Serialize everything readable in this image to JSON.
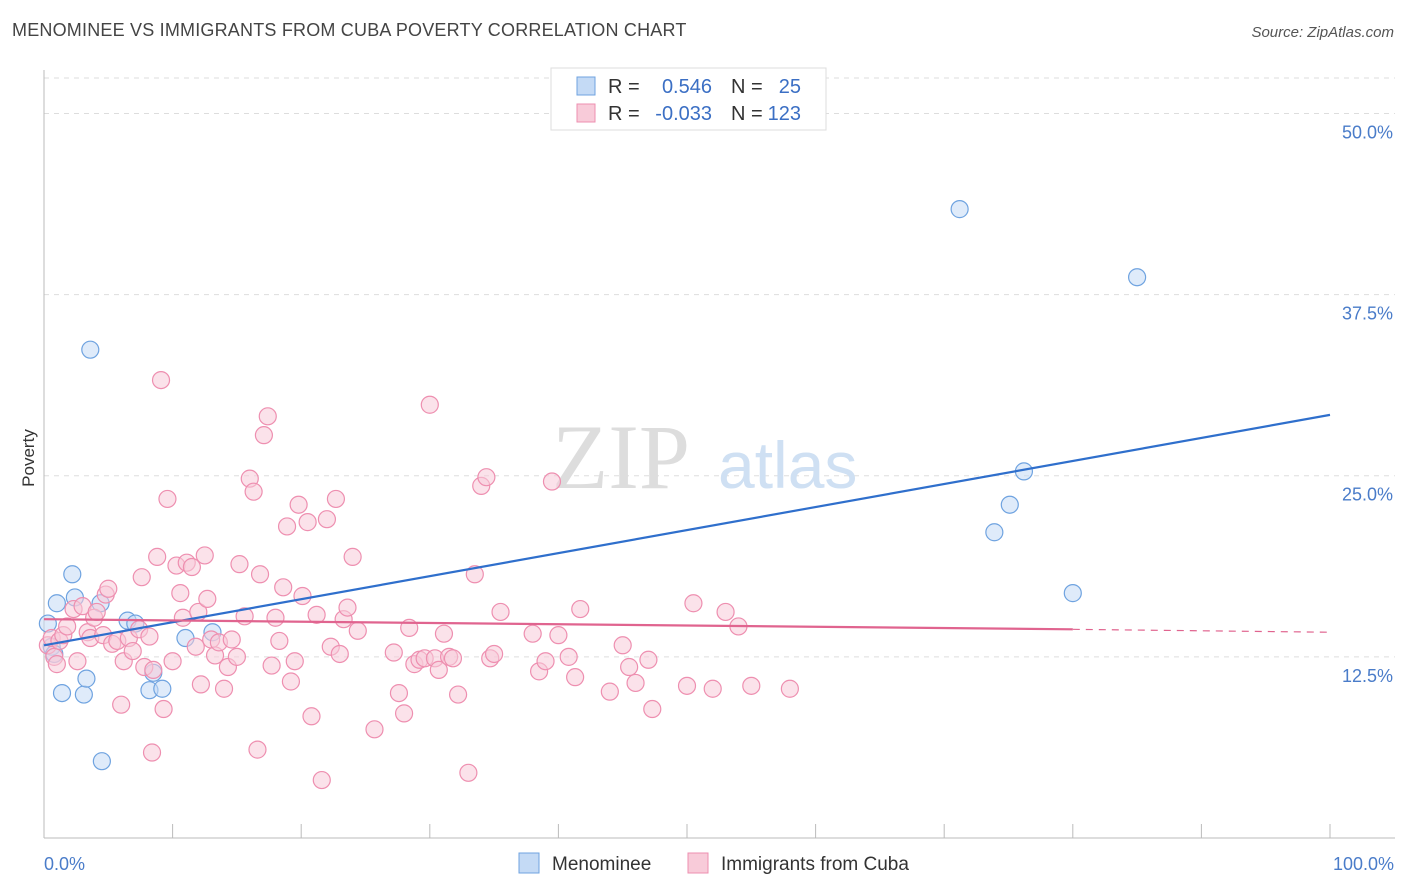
{
  "header": {
    "title": "MENOMINEE VS IMMIGRANTS FROM CUBA POVERTY CORRELATION CHART",
    "source": "Source: ZipAtlas.com"
  },
  "watermark": {
    "zip": "ZIP",
    "atlas": "atlas"
  },
  "chart_data": {
    "type": "scatter",
    "title": "MENOMINEE VS IMMIGRANTS FROM CUBA POVERTY CORRELATION CHART",
    "ylabel": "Poverty",
    "xlabel": "",
    "xlim": [
      0,
      100
    ],
    "ylim": [
      0,
      53
    ],
    "x_tick_labels": {
      "min": "0.0%",
      "max": "100.0%"
    },
    "y_ticks": [
      {
        "value": 12.5,
        "label": "12.5%"
      },
      {
        "value": 25.0,
        "label": "25.0%"
      },
      {
        "value": 37.5,
        "label": "37.5%"
      },
      {
        "value": 50.0,
        "label": "50.0%"
      }
    ],
    "grid": true,
    "legend_position": "top-center",
    "legend": [
      {
        "r_label": "R =",
        "r_value": "0.546",
        "n_label": "N =",
        "n_value": "25"
      },
      {
        "r_label": "R =",
        "r_value": "-0.033",
        "n_label": "N =",
        "n_value": "123"
      }
    ],
    "series": [
      {
        "name": "Menominee",
        "color": "#6fa3e0",
        "fill": "#c4daf5",
        "line_color": "#2f6fcc",
        "trend": {
          "x0": 0,
          "y0": 13.3,
          "x1": 100,
          "y1": 29.2
        },
        "points": [
          [
            0.3,
            14.8
          ],
          [
            0.6,
            13.2
          ],
          [
            0.8,
            12.7
          ],
          [
            1.0,
            16.2
          ],
          [
            1.4,
            10.0
          ],
          [
            2.2,
            18.2
          ],
          [
            2.4,
            16.6
          ],
          [
            3.1,
            9.9
          ],
          [
            3.3,
            11.0
          ],
          [
            3.6,
            33.7
          ],
          [
            4.5,
            5.3
          ],
          [
            4.4,
            16.2
          ],
          [
            6.5,
            15.0
          ],
          [
            7.1,
            14.8
          ],
          [
            8.2,
            10.2
          ],
          [
            8.5,
            11.4
          ],
          [
            9.2,
            10.3
          ],
          [
            11.0,
            13.8
          ],
          [
            13.1,
            14.2
          ],
          [
            71.2,
            43.4
          ],
          [
            73.9,
            21.1
          ],
          [
            75.1,
            23.0
          ],
          [
            76.2,
            25.3
          ],
          [
            80.0,
            16.9
          ],
          [
            85.0,
            38.7
          ]
        ]
      },
      {
        "name": "Immigrants from Cuba",
        "color": "#ee8fb0",
        "fill": "#f8cbd9",
        "line_color": "#e0648f",
        "trend": {
          "x0": 0,
          "y0": 15.1,
          "x1": 80,
          "y1": 14.4
        },
        "trend_extension": {
          "x0": 80,
          "y0": 14.4,
          "x1": 100,
          "y1": 14.2
        },
        "points": [
          [
            0.3,
            13.3
          ],
          [
            0.6,
            13.8
          ],
          [
            0.8,
            12.5
          ],
          [
            1.0,
            12.0
          ],
          [
            1.2,
            13.6
          ],
          [
            1.5,
            14.0
          ],
          [
            1.8,
            14.6
          ],
          [
            2.3,
            15.8
          ],
          [
            2.6,
            12.2
          ],
          [
            3.0,
            16.0
          ],
          [
            3.4,
            14.2
          ],
          [
            3.6,
            13.8
          ],
          [
            3.9,
            15.2
          ],
          [
            4.1,
            15.6
          ],
          [
            4.6,
            14.0
          ],
          [
            4.8,
            16.8
          ],
          [
            5.0,
            17.2
          ],
          [
            5.3,
            13.4
          ],
          [
            5.7,
            13.6
          ],
          [
            6.0,
            9.2
          ],
          [
            6.2,
            12.2
          ],
          [
            6.6,
            13.8
          ],
          [
            6.9,
            12.9
          ],
          [
            7.4,
            14.4
          ],
          [
            7.6,
            18.0
          ],
          [
            7.8,
            11.8
          ],
          [
            8.2,
            13.9
          ],
          [
            8.5,
            11.6
          ],
          [
            8.4,
            5.9
          ],
          [
            8.8,
            19.4
          ],
          [
            9.1,
            31.6
          ],
          [
            9.3,
            8.9
          ],
          [
            9.6,
            23.4
          ],
          [
            10.0,
            12.2
          ],
          [
            10.3,
            18.8
          ],
          [
            10.6,
            16.9
          ],
          [
            10.8,
            15.2
          ],
          [
            11.1,
            19.0
          ],
          [
            11.5,
            18.7
          ],
          [
            11.8,
            13.2
          ],
          [
            12.0,
            15.6
          ],
          [
            12.2,
            10.6
          ],
          [
            12.5,
            19.5
          ],
          [
            12.7,
            16.5
          ],
          [
            13.0,
            13.7
          ],
          [
            13.3,
            12.6
          ],
          [
            13.6,
            13.5
          ],
          [
            14.0,
            10.3
          ],
          [
            14.3,
            11.8
          ],
          [
            14.6,
            13.7
          ],
          [
            15.0,
            12.5
          ],
          [
            15.2,
            18.9
          ],
          [
            15.6,
            15.3
          ],
          [
            16.0,
            24.8
          ],
          [
            16.3,
            23.9
          ],
          [
            16.6,
            6.1
          ],
          [
            16.8,
            18.2
          ],
          [
            17.1,
            27.8
          ],
          [
            17.4,
            29.1
          ],
          [
            17.7,
            11.9
          ],
          [
            18.0,
            15.2
          ],
          [
            18.3,
            13.6
          ],
          [
            18.6,
            17.3
          ],
          [
            18.9,
            21.5
          ],
          [
            19.2,
            10.8
          ],
          [
            19.5,
            12.2
          ],
          [
            19.8,
            23.0
          ],
          [
            20.1,
            16.7
          ],
          [
            20.5,
            21.8
          ],
          [
            20.8,
            8.4
          ],
          [
            21.2,
            15.4
          ],
          [
            21.6,
            4.0
          ],
          [
            22.0,
            22.0
          ],
          [
            22.3,
            13.2
          ],
          [
            22.7,
            23.4
          ],
          [
            23.0,
            12.7
          ],
          [
            23.3,
            15.1
          ],
          [
            23.6,
            15.9
          ],
          [
            24.0,
            19.4
          ],
          [
            24.4,
            14.3
          ],
          [
            25.7,
            7.5
          ],
          [
            27.2,
            12.8
          ],
          [
            27.6,
            10.0
          ],
          [
            28.0,
            8.6
          ],
          [
            28.4,
            14.5
          ],
          [
            28.8,
            12.0
          ],
          [
            29.2,
            12.3
          ],
          [
            29.6,
            12.4
          ],
          [
            30.0,
            29.9
          ],
          [
            30.4,
            12.4
          ],
          [
            30.7,
            11.6
          ],
          [
            31.1,
            14.1
          ],
          [
            31.5,
            12.5
          ],
          [
            31.8,
            12.4
          ],
          [
            32.2,
            9.9
          ],
          [
            33.0,
            4.5
          ],
          [
            33.5,
            18.2
          ],
          [
            34.0,
            24.3
          ],
          [
            34.4,
            24.9
          ],
          [
            34.7,
            12.4
          ],
          [
            35.0,
            12.7
          ],
          [
            35.5,
            15.6
          ],
          [
            38.0,
            14.1
          ],
          [
            38.5,
            11.5
          ],
          [
            39.0,
            12.2
          ],
          [
            39.5,
            24.6
          ],
          [
            40.0,
            14.0
          ],
          [
            40.8,
            12.5
          ],
          [
            41.3,
            11.1
          ],
          [
            41.7,
            15.8
          ],
          [
            44.0,
            10.1
          ],
          [
            45.0,
            13.3
          ],
          [
            45.5,
            11.8
          ],
          [
            46.0,
            10.7
          ],
          [
            47.0,
            12.3
          ],
          [
            47.3,
            8.9
          ],
          [
            50.0,
            10.5
          ],
          [
            50.5,
            16.2
          ],
          [
            52.0,
            10.3
          ],
          [
            53.0,
            15.6
          ],
          [
            54.0,
            14.6
          ],
          [
            55.0,
            10.5
          ],
          [
            58.0,
            10.3
          ]
        ]
      }
    ]
  }
}
